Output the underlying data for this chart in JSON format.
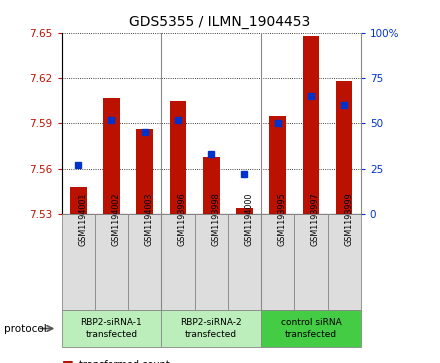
{
  "title": "GDS5355 / ILMN_1904453",
  "samples": [
    "GSM1194001",
    "GSM1194002",
    "GSM1194003",
    "GSM1193996",
    "GSM1193998",
    "GSM1194000",
    "GSM1193995",
    "GSM1193997",
    "GSM1193999"
  ],
  "red_values": [
    7.548,
    7.607,
    7.586,
    7.605,
    7.568,
    7.534,
    7.595,
    7.648,
    7.618
  ],
  "blue_values": [
    27,
    52,
    45,
    52,
    33,
    22,
    50,
    65,
    60
  ],
  "ymin": 7.53,
  "ymax": 7.65,
  "y2min": 0,
  "y2max": 100,
  "yticks": [
    7.53,
    7.56,
    7.59,
    7.62,
    7.65
  ],
  "y2ticks": [
    0,
    25,
    50,
    75,
    100
  ],
  "group_boundaries": [
    {
      "start": 0,
      "end": 3,
      "label": "RBP2-siRNA-1\ntransfected",
      "color": "#bbeebb"
    },
    {
      "start": 3,
      "end": 6,
      "label": "RBP2-siRNA-2\ntransfected",
      "color": "#bbeebb"
    },
    {
      "start": 6,
      "end": 9,
      "label": "control siRNA\ntransfected",
      "color": "#44cc44"
    }
  ],
  "red_color": "#bb1100",
  "blue_color": "#0033cc",
  "bar_width": 0.5,
  "sample_bg": "#dddddd",
  "plot_bg": "#ffffff"
}
